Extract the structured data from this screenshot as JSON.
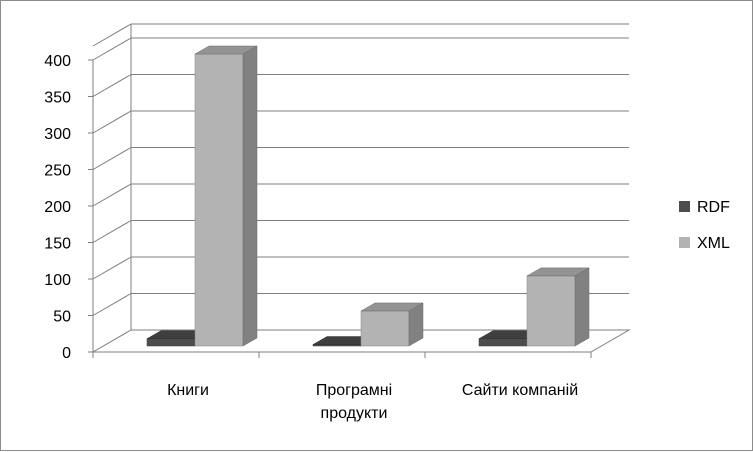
{
  "chart_data": {
    "type": "bar",
    "categories": [
      [
        "Книги"
      ],
      [
        "Програмні",
        "продукти"
      ],
      [
        "Сайти компаній"
      ]
    ],
    "series": [
      {
        "name": "RDF",
        "values": [
          10,
          2,
          10
        ],
        "color": "#4d4d4d"
      },
      {
        "name": "XML",
        "values": [
          400,
          48,
          96
        ],
        "color": "#b3b3b3"
      }
    ],
    "ylim": [
      0,
      400
    ],
    "yticks": [
      0,
      50,
      100,
      150,
      200,
      250,
      300,
      350,
      400
    ],
    "grid": true,
    "three_d": true,
    "legend": "right"
  }
}
